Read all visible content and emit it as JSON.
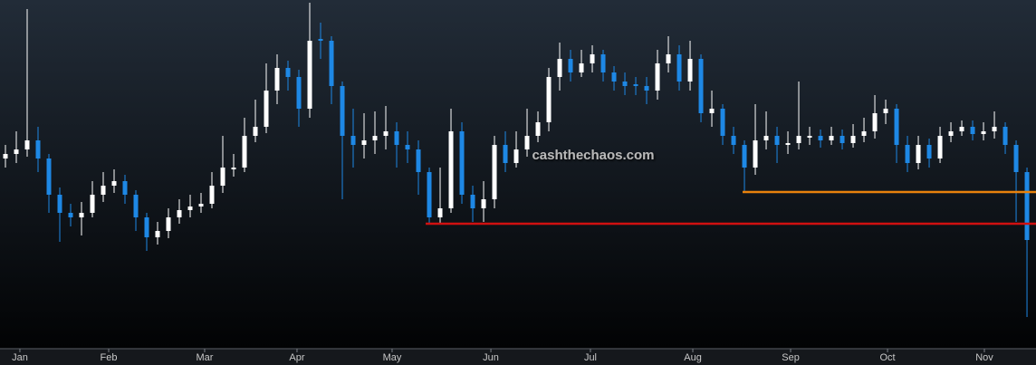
{
  "chart_data": {
    "type": "candlestick",
    "watermark": "cashthechaos.com",
    "up_color": "#ffffff",
    "down_color": "#1e88e5",
    "xlim": [
      -0.5,
      94.83
    ],
    "ylim": [
      0,
      385
    ],
    "xticks": [
      {
        "value": 1.33,
        "label": "Jan"
      },
      {
        "value": 9.5,
        "label": "Feb"
      },
      {
        "value": 18.33,
        "label": "Mar"
      },
      {
        "value": 26.83,
        "label": "Apr"
      },
      {
        "value": 35.58,
        "label": "May"
      },
      {
        "value": 44.67,
        "label": "Jun"
      },
      {
        "value": 53.83,
        "label": "Jul"
      },
      {
        "value": 63.25,
        "label": "Aug"
      },
      {
        "value": 72.25,
        "label": "Sep"
      },
      {
        "value": 81.17,
        "label": "Oct"
      },
      {
        "value": 90.08,
        "label": "Nov"
      }
    ],
    "levels": [
      {
        "value": 173,
        "from": 67.83,
        "color": "#e8820c"
      },
      {
        "value": 138,
        "from": 38.67,
        "color": "#d01010"
      }
    ],
    "open": [
      210,
      215,
      220,
      230,
      210,
      170,
      150,
      145,
      150,
      170,
      180,
      185,
      170,
      145,
      123,
      130,
      145,
      153,
      157,
      160,
      180,
      198,
      200,
      235,
      245,
      285,
      310,
      300,
      265,
      342,
      340,
      290,
      235,
      225,
      230,
      235,
      240,
      225,
      220,
      195,
      145,
      155,
      240,
      170,
      155,
      165,
      225,
      205,
      220,
      235,
      250,
      300,
      320,
      305,
      315,
      325,
      305,
      295,
      292,
      290,
      285,
      315,
      325,
      295,
      320,
      260,
      265,
      235,
      225,
      200,
      230,
      235,
      225,
      227,
      233,
      235,
      230,
      235,
      227,
      235,
      240,
      260,
      265,
      225,
      205,
      225,
      210,
      235,
      240,
      245,
      237,
      240,
      245,
      225,
      195
    ],
    "high": [
      225,
      240,
      375,
      245,
      215,
      178,
      160,
      162,
      185,
      195,
      198,
      192,
      175,
      150,
      140,
      155,
      165,
      170,
      172,
      195,
      235,
      215,
      255,
      275,
      315,
      325,
      318,
      308,
      382,
      360,
      345,
      295,
      265,
      260,
      262,
      268,
      250,
      240,
      230,
      200,
      200,
      265,
      250,
      180,
      185,
      235,
      240,
      240,
      265,
      262,
      310,
      338,
      330,
      330,
      335,
      330,
      312,
      305,
      300,
      300,
      330,
      345,
      335,
      340,
      325,
      285,
      270,
      245,
      230,
      270,
      262,
      245,
      240,
      295,
      245,
      242,
      245,
      242,
      248,
      255,
      280,
      275,
      270,
      235,
      235,
      232,
      245,
      250,
      252,
      252,
      250,
      262,
      250,
      230,
      200
    ],
    "low": [
      200,
      205,
      212,
      195,
      150,
      118,
      135,
      125,
      145,
      162,
      172,
      160,
      130,
      108,
      115,
      122,
      138,
      145,
      150,
      155,
      172,
      190,
      195,
      228,
      238,
      270,
      285,
      245,
      255,
      320,
      270,
      165,
      200,
      210,
      215,
      220,
      200,
      205,
      170,
      138,
      138,
      150,
      160,
      140,
      140,
      155,
      195,
      200,
      212,
      228,
      240,
      285,
      295,
      300,
      305,
      295,
      285,
      280,
      280,
      270,
      275,
      305,
      285,
      285,
      250,
      245,
      225,
      215,
      173,
      192,
      220,
      205,
      215,
      220,
      225,
      222,
      225,
      220,
      222,
      228,
      232,
      248,
      205,
      195,
      198,
      200,
      205,
      228,
      235,
      230,
      230,
      232,
      215,
      140,
      35
    ],
    "close": [
      215,
      220,
      230,
      210,
      170,
      150,
      145,
      150,
      170,
      180,
      185,
      170,
      145,
      123,
      130,
      145,
      153,
      157,
      160,
      180,
      200,
      200,
      235,
      245,
      285,
      310,
      300,
      265,
      340,
      340,
      290,
      235,
      225,
      230,
      235,
      240,
      225,
      220,
      195,
      145,
      155,
      240,
      170,
      155,
      165,
      225,
      205,
      220,
      235,
      250,
      300,
      320,
      305,
      315,
      325,
      305,
      295,
      290,
      290,
      285,
      315,
      325,
      295,
      320,
      260,
      265,
      235,
      225,
      200,
      230,
      235,
      225,
      227,
      235,
      235,
      230,
      235,
      227,
      235,
      240,
      260,
      265,
      225,
      205,
      225,
      210,
      235,
      240,
      245,
      237,
      240,
      245,
      225,
      195,
      120
    ]
  }
}
